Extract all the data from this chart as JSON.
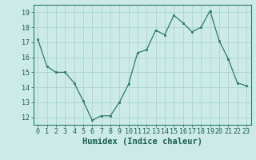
{
  "x": [
    0,
    1,
    2,
    3,
    4,
    5,
    6,
    7,
    8,
    9,
    10,
    11,
    12,
    13,
    14,
    15,
    16,
    17,
    18,
    19,
    20,
    21,
    22,
    23
  ],
  "y": [
    17.2,
    15.4,
    15.0,
    15.0,
    14.3,
    13.1,
    11.8,
    12.1,
    12.1,
    13.0,
    14.2,
    16.3,
    16.5,
    17.8,
    17.5,
    18.8,
    18.3,
    17.7,
    18.0,
    19.1,
    17.1,
    15.9,
    14.3,
    14.1
  ],
  "xlabel": "Humidex (Indice chaleur)",
  "ylim": [
    11.5,
    19.5
  ],
  "xlim": [
    -0.5,
    23.5
  ],
  "yticks": [
    12,
    13,
    14,
    15,
    16,
    17,
    18,
    19
  ],
  "xticks": [
    0,
    1,
    2,
    3,
    4,
    5,
    6,
    7,
    8,
    9,
    10,
    11,
    12,
    13,
    14,
    15,
    16,
    17,
    18,
    19,
    20,
    21,
    22,
    23
  ],
  "line_color": "#2d7a6a",
  "marker_color": "#2d7a6a",
  "bg_color": "#cceae7",
  "grid_color": "#aad4d0",
  "axis_color": "#2d7a6a",
  "label_color": "#1a5f52",
  "tick_font_size": 6.0,
  "xlabel_font_size": 7.5
}
